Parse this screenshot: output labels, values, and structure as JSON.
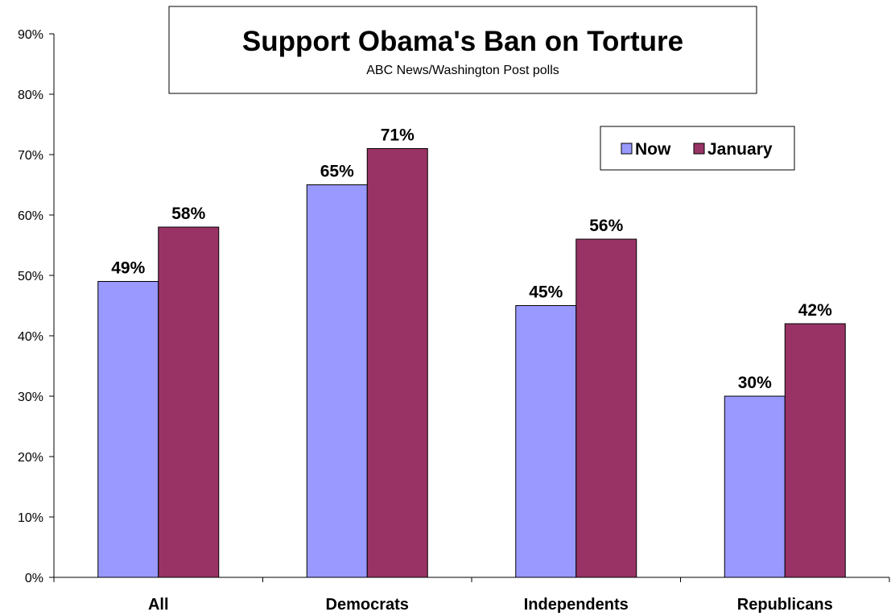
{
  "chart_data": {
    "type": "bar",
    "title": "Support Obama's Ban on Torture",
    "subtitle": "ABC News/Washington Post polls",
    "categories": [
      "All",
      "Democrats",
      "Independents",
      "Republicans"
    ],
    "series": [
      {
        "name": "Now",
        "values": [
          49,
          65,
          45,
          30
        ],
        "color": "#9999ff"
      },
      {
        "name": "January",
        "values": [
          58,
          71,
          56,
          42
        ],
        "color": "#993366"
      }
    ],
    "value_suffix": "%",
    "y_ticks": [
      "0%",
      "10%",
      "20%",
      "30%",
      "40%",
      "50%",
      "60%",
      "70%",
      "80%",
      "90%"
    ],
    "ylim": [
      0,
      90
    ],
    "xlabel": "",
    "ylabel": "",
    "grid": false,
    "legend_position": "top-right"
  }
}
